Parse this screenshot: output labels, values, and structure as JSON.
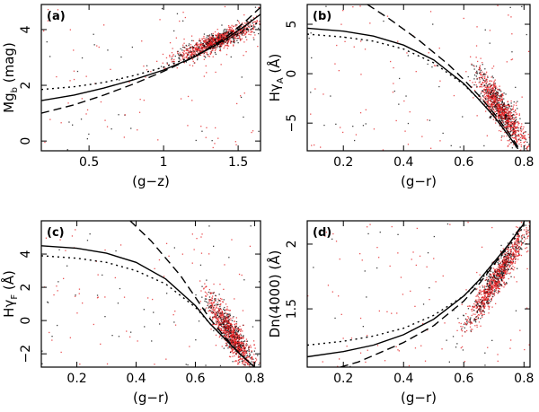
{
  "chart_data": [
    {
      "type": "scatter",
      "panel_label": "(a)",
      "xlabel": "(g−z)",
      "ylabel_main": "Mg",
      "ylabel_sub": "b",
      "ylabel_unit": "(mag)",
      "xlim": [
        0.18,
        1.65
      ],
      "ylim": [
        -0.35,
        4.9
      ],
      "xticks": [
        0.5,
        1,
        1.5
      ],
      "xtick_labels": [
        "0.5",
        "1",
        "1.5"
      ],
      "yticks": [
        0,
        2,
        4
      ],
      "ytick_labels": [
        "0",
        "2",
        "4"
      ],
      "cloud": {
        "x0": 1.35,
        "y0": 3.6,
        "sx": 0.14,
        "sy": 0.35,
        "slope": 2.2
      },
      "series": [
        {
          "style": "solid",
          "x": [
            0.18,
            0.4,
            0.6,
            0.8,
            1.0,
            1.2,
            1.4,
            1.55,
            1.65
          ],
          "y": [
            1.45,
            1.65,
            1.9,
            2.2,
            2.55,
            3.0,
            3.6,
            4.15,
            4.55
          ]
        },
        {
          "style": "dotted",
          "x": [
            0.18,
            0.4,
            0.6,
            0.8,
            1.0,
            1.2,
            1.4,
            1.55,
            1.65
          ],
          "y": [
            1.85,
            1.95,
            2.1,
            2.35,
            2.65,
            3.05,
            3.55,
            4.0,
            4.3
          ]
        },
        {
          "style": "dashed",
          "x": [
            0.18,
            0.4,
            0.6,
            0.8,
            1.0,
            1.2,
            1.4,
            1.55,
            1.65
          ],
          "y": [
            1.0,
            1.3,
            1.65,
            2.05,
            2.5,
            3.0,
            3.65,
            4.3,
            4.8
          ]
        }
      ]
    },
    {
      "type": "scatter",
      "panel_label": "(b)",
      "xlabel": "(g−r)",
      "ylabel_main": "Hγ",
      "ylabel_sub": "A",
      "ylabel_unit": "(Å)",
      "xlim": [
        0.08,
        0.82
      ],
      "ylim": [
        -7.8,
        7.0
      ],
      "xticks": [
        0.2,
        0.4,
        0.6,
        0.8
      ],
      "xtick_labels": [
        "0.2",
        "0.4",
        "0.6",
        "0.8"
      ],
      "yticks": [
        -5,
        0,
        5
      ],
      "ytick_labels": [
        "−5",
        "0",
        "5"
      ],
      "cloud": {
        "x0": 0.72,
        "y0": -3.5,
        "sx": 0.04,
        "sy": 2.0,
        "slope": -40
      },
      "series": [
        {
          "style": "solid",
          "x": [
            0.08,
            0.2,
            0.3,
            0.4,
            0.5,
            0.6,
            0.65,
            0.7,
            0.75,
            0.78
          ],
          "y": [
            4.6,
            4.3,
            3.8,
            2.9,
            1.4,
            -1.0,
            -2.6,
            -4.3,
            -6.3,
            -7.6
          ]
        },
        {
          "style": "dotted",
          "x": [
            0.08,
            0.2,
            0.3,
            0.4,
            0.5,
            0.6,
            0.65,
            0.7,
            0.75,
            0.78
          ],
          "y": [
            4.0,
            3.7,
            3.3,
            2.5,
            1.1,
            -1.1,
            -2.6,
            -4.3,
            -6.3,
            -7.6
          ]
        },
        {
          "style": "dashed",
          "x": [
            0.28,
            0.35,
            0.45,
            0.55,
            0.6,
            0.65,
            0.7,
            0.75,
            0.78
          ],
          "y": [
            7.0,
            5.6,
            3.4,
            0.9,
            -0.6,
            -2.2,
            -4.0,
            -6.0,
            -7.4
          ]
        }
      ]
    },
    {
      "type": "scatter",
      "panel_label": "(c)",
      "xlabel": "(g−r)",
      "ylabel_main": "Hγ",
      "ylabel_sub": "F",
      "ylabel_unit": "(Å)",
      "xlim": [
        0.08,
        0.82
      ],
      "ylim": [
        -2.8,
        6.0
      ],
      "xticks": [
        0.2,
        0.4,
        0.6,
        0.8
      ],
      "xtick_labels": [
        "0.2",
        "0.4",
        "0.6",
        "0.8"
      ],
      "yticks": [
        -2,
        0,
        2,
        4
      ],
      "ytick_labels": [
        "−2",
        "0",
        "2",
        "4"
      ],
      "cloud": {
        "x0": 0.72,
        "y0": -0.8,
        "sx": 0.04,
        "sy": 1.2,
        "slope": -25
      },
      "series": [
        {
          "style": "solid",
          "x": [
            0.08,
            0.2,
            0.3,
            0.4,
            0.5,
            0.6,
            0.65,
            0.7,
            0.75,
            0.8
          ],
          "y": [
            4.5,
            4.35,
            4.05,
            3.5,
            2.5,
            0.9,
            -0.2,
            -1.1,
            -2.0,
            -2.8
          ]
        },
        {
          "style": "dotted",
          "x": [
            0.08,
            0.2,
            0.3,
            0.4,
            0.5,
            0.6,
            0.65,
            0.7,
            0.75,
            0.8
          ],
          "y": [
            3.9,
            3.75,
            3.5,
            3.0,
            2.2,
            0.8,
            -0.2,
            -1.1,
            -2.0,
            -2.8
          ]
        },
        {
          "style": "dashed",
          "x": [
            0.38,
            0.45,
            0.55,
            0.6,
            0.65,
            0.7,
            0.75,
            0.8
          ],
          "y": [
            6.0,
            4.8,
            2.7,
            1.4,
            0.1,
            -1.0,
            -2.0,
            -2.8
          ]
        }
      ]
    },
    {
      "type": "scatter",
      "panel_label": "(d)",
      "xlabel": "(g−r)",
      "ylabel_main": "Dn(4000)",
      "ylabel_sub": "",
      "ylabel_unit": "(Å)",
      "xlim": [
        0.08,
        0.82
      ],
      "ylim": [
        1.05,
        2.18
      ],
      "xticks": [
        0.2,
        0.4,
        0.6,
        0.8
      ],
      "xtick_labels": [
        "0.2",
        "0.4",
        "0.6",
        "0.8"
      ],
      "yticks": [
        1.5,
        2
      ],
      "ytick_labels": [
        "1.5",
        "2"
      ],
      "cloud": {
        "x0": 0.71,
        "y0": 1.75,
        "sx": 0.05,
        "sy": 0.14,
        "slope": 3.5
      },
      "series": [
        {
          "style": "solid",
          "x": [
            0.08,
            0.2,
            0.3,
            0.4,
            0.5,
            0.6,
            0.65,
            0.7,
            0.75,
            0.8
          ],
          "y": [
            1.13,
            1.17,
            1.22,
            1.3,
            1.42,
            1.6,
            1.72,
            1.86,
            2.0,
            2.16
          ]
        },
        {
          "style": "dotted",
          "x": [
            0.08,
            0.2,
            0.3,
            0.4,
            0.5,
            0.6,
            0.65,
            0.7,
            0.75,
            0.8
          ],
          "y": [
            1.22,
            1.25,
            1.29,
            1.35,
            1.45,
            1.6,
            1.71,
            1.84,
            1.98,
            2.14
          ]
        },
        {
          "style": "dashed",
          "x": [
            0.19,
            0.25,
            0.3,
            0.4,
            0.5,
            0.6,
            0.65,
            0.7,
            0.75,
            0.8
          ],
          "y": [
            1.05,
            1.09,
            1.14,
            1.24,
            1.37,
            1.56,
            1.69,
            1.84,
            2.0,
            2.17
          ]
        }
      ]
    }
  ],
  "colors": {
    "points_red": "#e31a1c",
    "points_black": "#000000",
    "axes": "#000000"
  }
}
